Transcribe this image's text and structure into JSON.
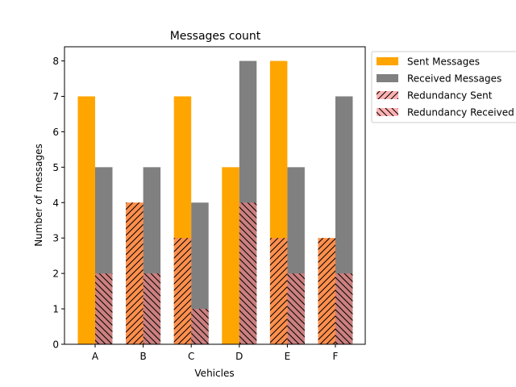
{
  "chart_data": {
    "type": "bar",
    "title": "Messages count",
    "xlabel": "Vehicles",
    "ylabel": "Number of messages",
    "categories": [
      "A",
      "B",
      "C",
      "D",
      "E",
      "F"
    ],
    "ylim": [
      0,
      8.4
    ],
    "yticks": [
      0,
      1,
      2,
      3,
      4,
      5,
      6,
      7,
      8
    ],
    "grid": false,
    "legend_position": "outside-right",
    "series": [
      {
        "name": "Sent Messages",
        "values": [
          7,
          4,
          7,
          5,
          8,
          3
        ],
        "color": "#ffa500",
        "hatch": "none"
      },
      {
        "name": "Received Messages",
        "values": [
          5,
          5,
          4,
          8,
          5,
          7
        ],
        "color": "#808080",
        "hatch": "none"
      },
      {
        "name": "Redundancy Sent",
        "values": [
          0,
          4,
          3,
          0,
          3,
          3
        ],
        "color": "#ff8080",
        "hatch": "forward"
      },
      {
        "name": "Redundancy Received",
        "values": [
          2,
          2,
          1,
          4,
          2,
          2
        ],
        "color": "#ff8080",
        "hatch": "back"
      }
    ]
  }
}
